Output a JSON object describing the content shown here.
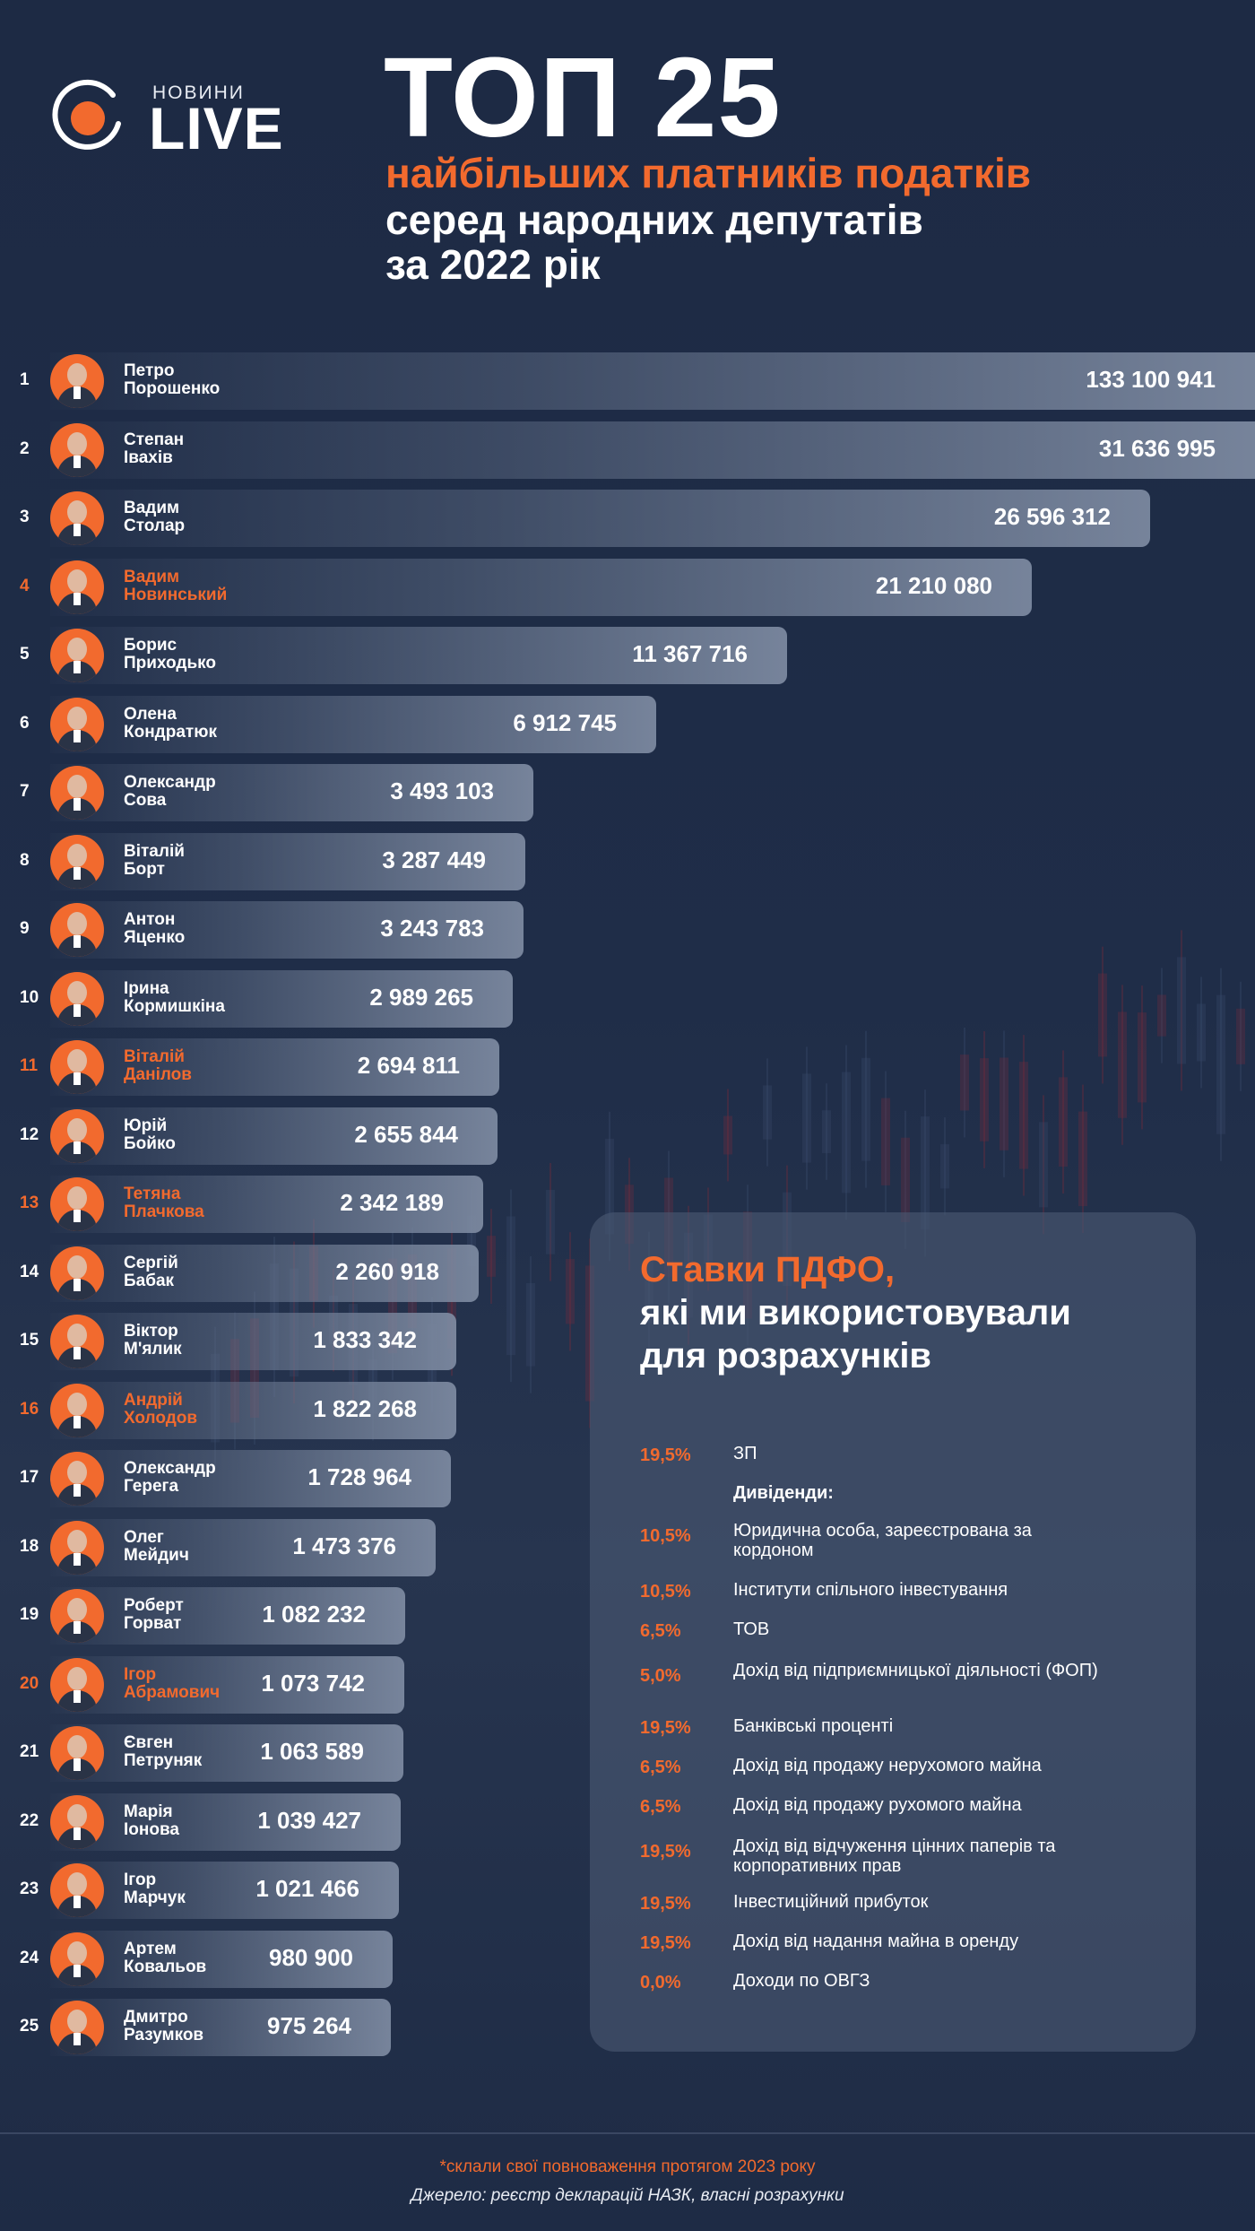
{
  "logo": {
    "small": "НОВИНИ",
    "big": "LIVE"
  },
  "header": {
    "title": "ТОП 25",
    "line1": "найбільших платників податків",
    "line2": "серед народних депутатів",
    "line3": "за 2022 рік"
  },
  "colors": {
    "accent": "#f26a2e",
    "background": "#1d2a44",
    "bar": "#7e8ba2"
  },
  "chart_data": {
    "type": "bar",
    "orientation": "horizontal",
    "xlim": [
      0,
      31636995
    ],
    "grid": false,
    "legend": "none",
    "rows": [
      {
        "rank": "1",
        "first": "Петро",
        "last": "Порошенко",
        "value": 133100941,
        "label": "133 100 941",
        "highlight": false
      },
      {
        "rank": "2",
        "first": "Степан",
        "last": "Івахів",
        "value": 31636995,
        "label": "31 636 995",
        "highlight": false
      },
      {
        "rank": "3",
        "first": "Вадим",
        "last": "Столар",
        "value": 26596312,
        "label": "26 596 312",
        "highlight": false
      },
      {
        "rank": "4",
        "first": "Вадим",
        "last": "Новинський",
        "value": 21210080,
        "label": "21 210 080",
        "highlight": true
      },
      {
        "rank": "5",
        "first": "Борис",
        "last": "Приходько",
        "value": 11367716,
        "label": "11 367 716",
        "highlight": false
      },
      {
        "rank": "6",
        "first": "Олена",
        "last": "Кондратюк",
        "value": 6912745,
        "label": "6 912 745",
        "highlight": false
      },
      {
        "rank": "7",
        "first": "Олександр",
        "last": "Сова",
        "value": 3493103,
        "label": "3 493 103",
        "highlight": false
      },
      {
        "rank": "8",
        "first": "Віталій",
        "last": "Борт",
        "value": 3287449,
        "label": "3 287 449",
        "highlight": false
      },
      {
        "rank": "9",
        "first": "Антон",
        "last": "Яценко",
        "value": 3243783,
        "label": "3 243 783",
        "highlight": false
      },
      {
        "rank": "10",
        "first": "Ірина",
        "last": "Кормишкіна",
        "value": 2989265,
        "label": "2 989 265",
        "highlight": false
      },
      {
        "rank": "11",
        "first": "Віталій",
        "last": "Данілов",
        "value": 2694811,
        "label": "2 694 811",
        "highlight": true
      },
      {
        "rank": "12",
        "first": "Юрій",
        "last": "Бойко",
        "value": 2655844,
        "label": "2 655 844",
        "highlight": false
      },
      {
        "rank": "13",
        "first": "Тетяна",
        "last": "Плачкова",
        "value": 2342189,
        "label": "2 342 189",
        "highlight": true
      },
      {
        "rank": "14",
        "first": "Сергій",
        "last": "Бабак",
        "value": 2260918,
        "label": "2 260 918",
        "highlight": false
      },
      {
        "rank": "15",
        "first": "Віктор",
        "last": "М'ялик",
        "value": 1833342,
        "label": "1 833 342",
        "highlight": false
      },
      {
        "rank": "16",
        "first": "Андрій",
        "last": "Холодов",
        "value": 1822268,
        "label": "1 822 268",
        "highlight": true
      },
      {
        "rank": "17",
        "first": "Олександр",
        "last": "Герега",
        "value": 1728964,
        "label": "1 728 964",
        "highlight": false
      },
      {
        "rank": "18",
        "first": "Олег",
        "last": "Мейдич",
        "value": 1473376,
        "label": "1 473 376",
        "highlight": false
      },
      {
        "rank": "19",
        "first": "Роберт",
        "last": "Горват",
        "value": 1082232,
        "label": "1 082 232",
        "highlight": false
      },
      {
        "rank": "20",
        "first": "Ігор",
        "last": "Абрамович",
        "value": 1073742,
        "label": "1 073 742",
        "highlight": true
      },
      {
        "rank": "21",
        "first": "Євген",
        "last": "Петруняк",
        "value": 1063589,
        "label": "1 063 589",
        "highlight": false
      },
      {
        "rank": "22",
        "first": "Марія",
        "last": "Іонова",
        "value": 1039427,
        "label": "1 039 427",
        "highlight": false
      },
      {
        "rank": "23",
        "first": "Ігор",
        "last": "Марчук",
        "value": 1021466,
        "label": "1 021 466",
        "highlight": false
      },
      {
        "rank": "24",
        "first": "Артем",
        "last": "Ковальов",
        "value": 980900,
        "label": "980 900",
        "highlight": false
      },
      {
        "rank": "25",
        "first": "Дмитро",
        "last": "Разумков",
        "value": 975264,
        "label": "975 264",
        "highlight": false
      }
    ]
  },
  "panel": {
    "title1": "Ставки ПДФО,",
    "title2": "які ми використовували",
    "title3": "для розрахунків",
    "dividends_heading": "Дивіденди:",
    "rates": [
      {
        "rate": "19,5%",
        "label": "ЗП"
      },
      {
        "rate": "10,5%",
        "label": "Юридична особа, зареєстрована за кордоном"
      },
      {
        "rate": "10,5%",
        "label": "Інститути спільного інвестування"
      },
      {
        "rate": "6,5%",
        "label": "ТОВ"
      },
      {
        "rate": "5,0%",
        "label": "Дохід від підприємницької діяльності (ФОП)"
      },
      {
        "rate": "19,5%",
        "label": "Банківські процентi"
      },
      {
        "rate": "6,5%",
        "label": "Дохід від продажу нерухомого майна"
      },
      {
        "rate": "6,5%",
        "label": "Дохід від продажу рухомого майна"
      },
      {
        "rate": "19,5%",
        "label": "Дохід від відчуження цінних паперів та корпоративних прав"
      },
      {
        "rate": "19,5%",
        "label": "Інвестиційний прибуток"
      },
      {
        "rate": "19,5%",
        "label": "Дохід від надання майна в оренду"
      },
      {
        "rate": "0,0%",
        "label": "Доходи по ОВГЗ"
      }
    ]
  },
  "footer": {
    "note": "*склали свої повноваження протягом 2023 року",
    "source": "Джерело: реєстр декларацій НАЗК, власні розрахунки"
  }
}
